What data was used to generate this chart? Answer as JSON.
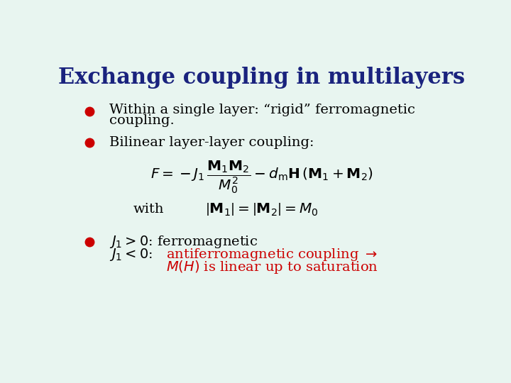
{
  "title": "Exchange coupling in multilayers",
  "title_color": "#1a237e",
  "title_fontsize": 22,
  "bg_color": "#e8f5f0",
  "bullet_color": "#cc0000",
  "text_color": "#000000",
  "red_color": "#cc0000",
  "bullet1_line1": "Within a single layer: “rigid” ferromagnetic",
  "bullet1_line2": "coupling.",
  "bullet2": "Bilinear layer-layer coupling:",
  "with_text": "with",
  "bullet3_line1": "ferromagnetic",
  "bullet3_line2_red": "antiferromagnetic coupling",
  "bullet3_line3_red": "is linear up to saturation"
}
